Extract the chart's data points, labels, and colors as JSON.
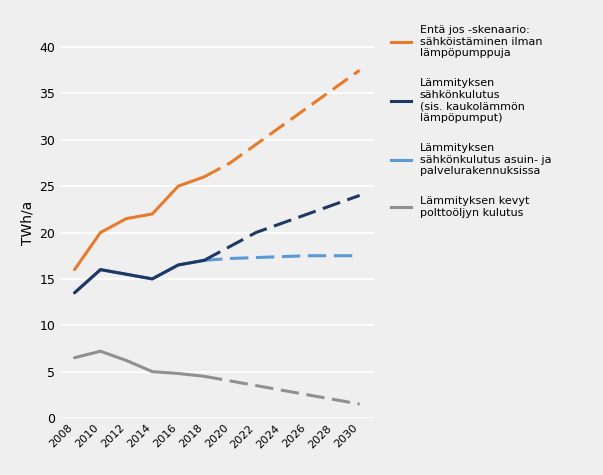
{
  "years_solid": [
    2008,
    2010,
    2012,
    2014,
    2016,
    2018
  ],
  "years_dashed": [
    2018,
    2020,
    2022,
    2024,
    2026,
    2028,
    2030
  ],
  "orange_solid": [
    16,
    20,
    21.5,
    22,
    25,
    26
  ],
  "orange_dashed": [
    26,
    27.5,
    29.5,
    31.5,
    33.5,
    35.5,
    37.5
  ],
  "dark_blue_solid": [
    13.5,
    16,
    15.5,
    15,
    16.5,
    17
  ],
  "dark_blue_dashed": [
    17,
    18.5,
    20,
    21,
    22,
    23,
    24
  ],
  "light_blue_solid": [
    13.5,
    16,
    15.5,
    15,
    16.5,
    17
  ],
  "light_blue_dashed": [
    17,
    17.2,
    17.3,
    17.4,
    17.5,
    17.5,
    17.5
  ],
  "grey_solid": [
    6.5,
    7.2,
    6.2,
    5.0,
    4.8,
    4.5
  ],
  "grey_dashed": [
    4.5,
    4.0,
    3.5,
    3.0,
    2.5,
    2.0,
    1.5
  ],
  "orange_color": "#E87B2B",
  "dark_blue_color": "#1F3864",
  "light_blue_color": "#5B9BD5",
  "grey_color": "#909090",
  "ylabel": "TWh/a",
  "ylim": [
    0,
    42
  ],
  "yticks": [
    0,
    5,
    10,
    15,
    20,
    25,
    30,
    35,
    40
  ],
  "xticks": [
    2008,
    2010,
    2012,
    2014,
    2016,
    2018,
    2020,
    2022,
    2024,
    2026,
    2028,
    2030
  ],
  "legend1": "Entä jos -skenaario:\nsähköistäminen ilman\nlämpöpumppuja",
  "legend2": "Lämmityksen\nsähkönkulutus\n(sis. kaukolämmön\nlämpöpumput)",
  "legend3": "Lämmityksen\nsähkönkulutus asuin- ja\npalvelurakennuksissa",
  "legend4": "Lämmityksen kevyt\npolttoöljyn kulutus",
  "bg_color": "#EFEFEF",
  "linewidth": 2.2,
  "dash_linewidth": 2.2
}
